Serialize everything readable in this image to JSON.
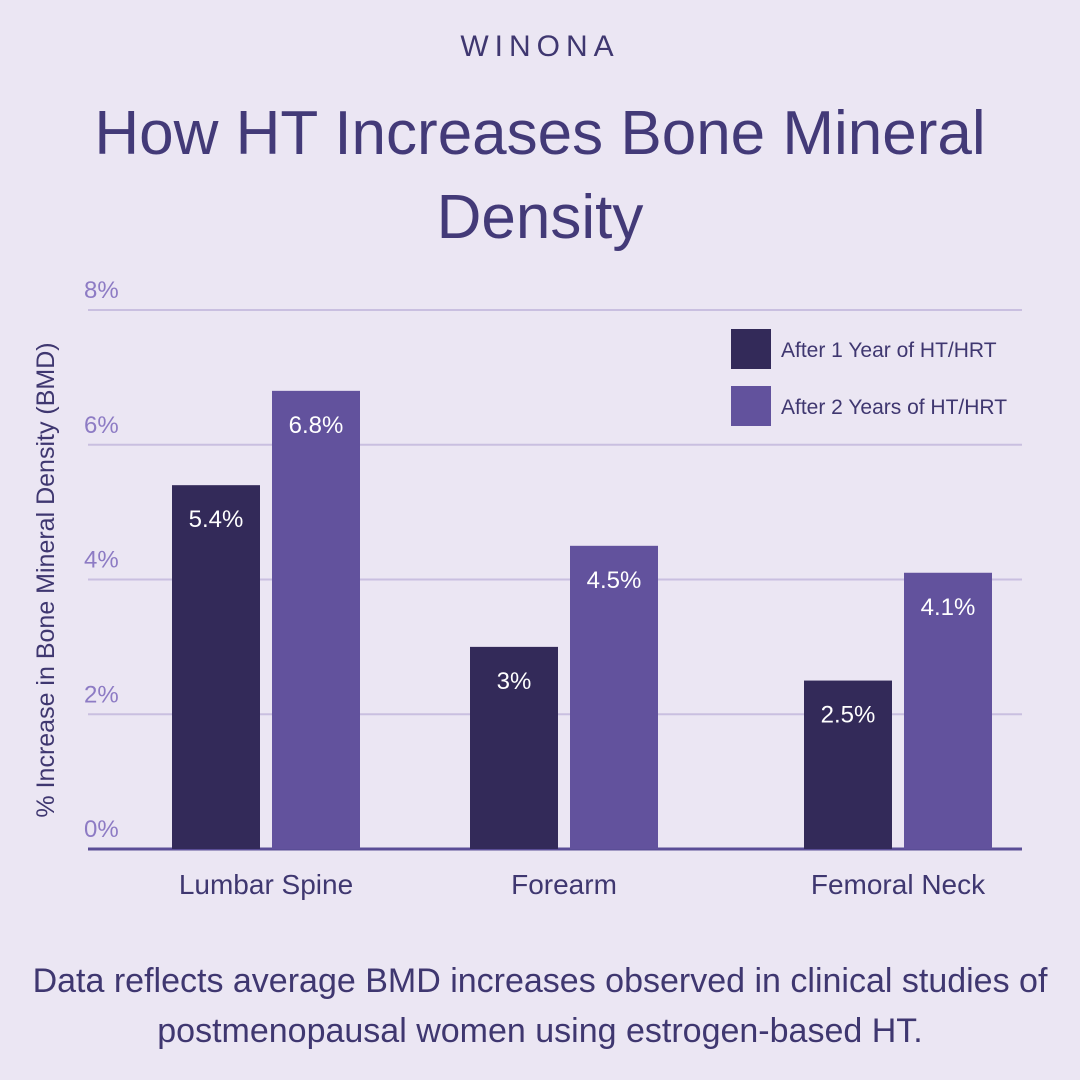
{
  "brand": "WINONA",
  "title": "How HT Increases Bone Mineral Density",
  "footnote": "Data reflects average BMD increases observed in clinical studies of postmenopausal women using estrogen-based HT.",
  "colors": {
    "series1": "#332a59",
    "series2": "#62529d",
    "grid": "#c9bfe0",
    "tick": "#8d7bc4",
    "text": "#3f3770"
  },
  "chart_data": {
    "type": "bar",
    "ylabel": "% Increase in Bone Mineral Density (BMD)",
    "xlabel": "",
    "ylim": [
      0,
      8
    ],
    "yticks": [
      {
        "value": 0,
        "label": "0%"
      },
      {
        "value": 2,
        "label": "2%"
      },
      {
        "value": 4,
        "label": "4%"
      },
      {
        "value": 6,
        "label": "6%"
      },
      {
        "value": 8,
        "label": "8%"
      }
    ],
    "categories": [
      "Lumbar Spine",
      "Forearm",
      "Femoral Neck"
    ],
    "series": [
      {
        "name": "After 1 Year of HT/HRT",
        "values": [
          5.4,
          3.0,
          2.5
        ],
        "labels": [
          "5.4%",
          "3%",
          "2.5%"
        ]
      },
      {
        "name": "After 2 Years of HT/HRT",
        "values": [
          6.8,
          4.5,
          4.1
        ],
        "labels": [
          "6.8%",
          "4.5%",
          "4.1%"
        ]
      }
    ],
    "grid": true,
    "legend": "top-right"
  }
}
